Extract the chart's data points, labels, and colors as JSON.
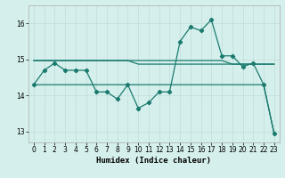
{
  "title": "",
  "xlabel": "Humidex (Indice chaleur)",
  "background_color": "#d5f0ec",
  "line_color": "#1a7a6e",
  "grid_color": "#c0ddd8",
  "xlim": [
    -0.5,
    23.5
  ],
  "ylim": [
    12.7,
    16.5
  ],
  "yticks": [
    13,
    14,
    15,
    16
  ],
  "xticks": [
    0,
    1,
    2,
    3,
    4,
    5,
    6,
    7,
    8,
    9,
    10,
    11,
    12,
    13,
    14,
    15,
    16,
    17,
    18,
    19,
    20,
    21,
    22,
    23
  ],
  "series1": [
    14.3,
    14.7,
    14.9,
    14.7,
    14.7,
    14.7,
    14.1,
    14.1,
    13.9,
    14.3,
    13.65,
    13.8,
    14.1,
    14.1,
    15.5,
    15.9,
    15.8,
    16.1,
    15.1,
    15.1,
    14.8,
    14.9,
    14.3,
    12.95
  ],
  "series2": [
    14.3,
    14.3,
    14.3,
    14.3,
    14.3,
    14.3,
    14.3,
    14.3,
    14.3,
    14.3,
    14.3,
    14.3,
    14.3,
    14.3,
    14.3,
    14.3,
    14.3,
    14.3,
    14.3,
    14.3,
    14.3,
    14.3,
    14.3,
    12.95
  ],
  "series3": [
    14.97,
    14.97,
    14.97,
    14.97,
    14.97,
    14.97,
    14.97,
    14.97,
    14.97,
    14.97,
    14.97,
    14.97,
    14.97,
    14.97,
    14.97,
    14.97,
    14.97,
    14.97,
    14.97,
    14.87,
    14.87,
    14.87,
    14.87,
    14.87
  ],
  "series4": [
    14.97,
    14.97,
    14.97,
    14.97,
    14.97,
    14.97,
    14.97,
    14.97,
    14.97,
    14.97,
    14.87,
    14.87,
    14.87,
    14.87,
    14.87,
    14.87,
    14.87,
    14.87,
    14.87,
    14.87,
    14.87,
    14.87,
    14.87,
    14.87
  ]
}
